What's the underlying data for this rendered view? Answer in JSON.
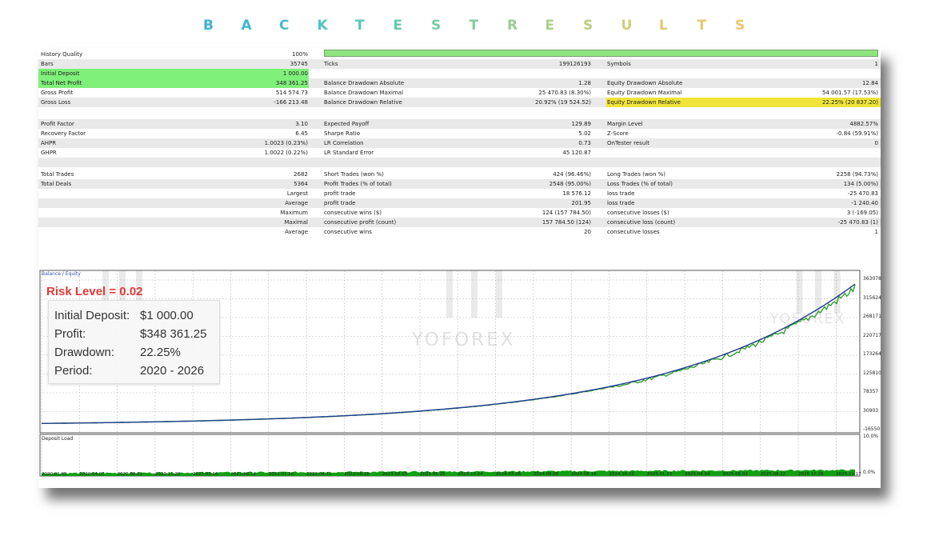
{
  "title_letters": [
    "B",
    "A",
    "C",
    "K",
    "T",
    "E",
    "S",
    "T",
    "R",
    "E",
    "S",
    "U",
    "L",
    "T",
    "S"
  ],
  "title_colors": [
    "#3db0d8",
    "#3fb6d4",
    "#45bccc",
    "#4dc2c4",
    "#58c6ba",
    "#66c9b0",
    "#74cba6",
    "#84cd9c",
    "#96cf92",
    "#a9d089",
    "#bbcf7f",
    "#ccce77",
    "#dccc6f",
    "#e6c86a",
    "#edc468"
  ],
  "stats": {
    "history_quality": {
      "label": "History Quality",
      "value": "100%"
    },
    "bars": {
      "label": "Bars",
      "value": "35745"
    },
    "ticks": {
      "label": "Ticks",
      "value": "199126193"
    },
    "symbols": {
      "label": "Symbols",
      "value": "1"
    },
    "initial_deposit": {
      "label": "Initial Deposit",
      "value": "1 000.00"
    },
    "total_net_profit": {
      "label": "Total Net Profit",
      "value": "348 361.25"
    },
    "balance_dd_abs": {
      "label": "Balance Drawdown Absolute",
      "value": "1.28"
    },
    "equity_dd_abs": {
      "label": "Equity Drawdown Absolute",
      "value": "12.84"
    },
    "gross_profit": {
      "label": "Gross Profit",
      "value": "514 574.73"
    },
    "balance_dd_max": {
      "label": "Balance Drawdown Maximal",
      "value": "25 470.83 (8.30%)"
    },
    "equity_dd_max": {
      "label": "Equity Drawdown Maximal",
      "value": "54 001.57 (17.53%)"
    },
    "gross_loss": {
      "label": "Gross Loss",
      "value": "-166 213.48"
    },
    "balance_dd_rel": {
      "label": "Balance Drawdown Relative",
      "value": "20.92% (19 524.52)"
    },
    "equity_dd_rel": {
      "label": "Equity Drawdown Relative",
      "value": "22.25% (20 837.20)"
    },
    "profit_factor": {
      "label": "Profit Factor",
      "value": "3.10"
    },
    "expected_payoff": {
      "label": "Expected Payoff",
      "value": "129.89"
    },
    "margin_level": {
      "label": "Margin Level",
      "value": "4882.57%"
    },
    "recovery_factor": {
      "label": "Recovery Factor",
      "value": "6.45"
    },
    "sharpe_ratio": {
      "label": "Sharpe Ratio",
      "value": "5.02"
    },
    "z_score": {
      "label": "Z-Score",
      "value": "-0.84 (59.91%)"
    },
    "ahpr": {
      "label": "AHPR",
      "value": "1.0023 (0.23%)"
    },
    "lr_correlation": {
      "label": "LR Correlation",
      "value": "0.73"
    },
    "ontester": {
      "label": "OnTester result",
      "value": "0"
    },
    "ghpr": {
      "label": "GHPR",
      "value": "1.0022 (0.22%)"
    },
    "lr_std_error": {
      "label": "LR Standard Error",
      "value": "45 120.87"
    },
    "total_trades": {
      "label": "Total Trades",
      "value": "2682"
    },
    "short_trades": {
      "label": "Short Trades (won %)",
      "value": "424 (96.46%)"
    },
    "long_trades": {
      "label": "Long Trades (won %)",
      "value": "2258 (94.73%)"
    },
    "total_deals": {
      "label": "Total Deals",
      "value": "5364"
    },
    "profit_trades": {
      "label": "Profit Trades (% of total)",
      "value": "2548 (95.00%)"
    },
    "loss_trades": {
      "label": "Loss Trades (% of total)",
      "value": "134 (5.00%)"
    },
    "largest": {
      "label": "Largest",
      "p_label": "profit trade",
      "p_value": "18 576.12",
      "l_label": "loss trade",
      "l_value": "-25 470.83"
    },
    "average": {
      "label": "Average",
      "p_label": "profit trade",
      "p_value": "201.95",
      "l_label": "loss trade",
      "l_value": "-1 240.40"
    },
    "maximum": {
      "label": "Maximum",
      "p_label": "consecutive wins ($)",
      "p_value": "124 (157 784.50)",
      "l_label": "consecutive losses ($)",
      "l_value": "3 (-169.05)"
    },
    "maximal": {
      "label": "Maximal",
      "p_label": "consecutive profit (count)",
      "p_value": "157 784.50 (124)",
      "l_label": "consecutive loss (count)",
      "l_value": "-25 470.83 (1)"
    },
    "average2": {
      "label": "Average",
      "p_label": "consecutive wins",
      "p_value": "20",
      "l_label": "consecutive losses",
      "l_value": "1"
    }
  },
  "chart": {
    "legend": "Balance / Equity",
    "deposit_load_label": "Deposit Load",
    "risk_label": "Risk Level = 0.02",
    "summary": [
      {
        "label": "Initial Deposit:",
        "value": "$1 000.00"
      },
      {
        "label": "Profit:",
        "value": "$348 361.25"
      },
      {
        "label": "Drawdown:",
        "value": "22.25%"
      },
      {
        "label": "Period:",
        "value": "2020 - 2026"
      }
    ],
    "y_ticks": [
      "363078",
      "315624",
      "268171",
      "220717",
      "173264",
      "125810",
      "78357",
      "30903",
      "-16550"
    ],
    "load_ticks": [
      "10.0%",
      "0.0%"
    ],
    "x_ticks": [
      "2020.01.05",
      "2020.04.07",
      "2020.08.03",
      "2020.11.20",
      "2021.03.16",
      "2021.08.12",
      "2021.01.28",
      "2022.04.11",
      "2022.09.28",
      "2023.02.15",
      "2023.05.25",
      "2023.10.24",
      "2024.03.26",
      "2024.06.05",
      "2024.08.16",
      "2024.10.22",
      "2025.01.23",
      "2025.04.04",
      "2025.06.02",
      "2025.08.22",
      "2025.10.29",
      "2025.12.17"
    ],
    "watermark": "YOFOREX",
    "colors": {
      "balance": "#1f3d8f",
      "equity": "#2fa02f",
      "load": "#11a011"
    }
  }
}
